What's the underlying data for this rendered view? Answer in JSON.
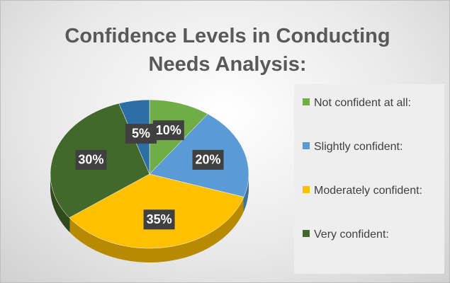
{
  "chart_data": {
    "type": "pie",
    "title": "Confidence Levels in Conducting Needs Analysis:",
    "categories": [
      "Not confident at all:",
      "Slightly confident:",
      "Moderately confident:",
      "Very confident:",
      null
    ],
    "values": [
      10,
      20,
      35,
      30,
      5
    ],
    "value_labels": [
      "10%",
      "20%",
      "35%",
      "30%",
      "5%"
    ],
    "colors": [
      "#70ad47",
      "#5b9bd5",
      "#ffc000",
      "#43682b",
      "#2e6ea6"
    ],
    "legend": "right"
  }
}
